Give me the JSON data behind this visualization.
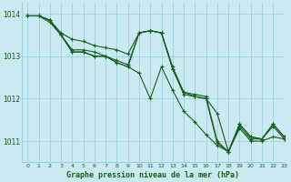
{
  "title": "Graphe pression niveau de la mer (hPa)",
  "background_color": "#c8eaf0",
  "plot_bg_color": "#c8eaf0",
  "grid_color": "#a0d0d8",
  "line_color": "#1a5e20",
  "xlim": [
    -0.5,
    23
  ],
  "ylim": [
    1010.5,
    1014.25
  ],
  "yticks": [
    1011,
    1012,
    1013,
    1014
  ],
  "xticks": [
    0,
    1,
    2,
    3,
    4,
    5,
    6,
    7,
    8,
    9,
    10,
    11,
    12,
    13,
    14,
    15,
    16,
    17,
    18,
    19,
    20,
    21,
    22,
    23
  ],
  "series": [
    [
      1013.95,
      1013.95,
      1013.85,
      1013.55,
      1013.4,
      1013.35,
      1013.25,
      1013.2,
      1013.15,
      1013.05,
      1013.55,
      1013.6,
      1013.55,
      1012.7,
      1012.15,
      1012.05,
      1012.0,
      1011.65,
      1010.75,
      1011.4,
      1011.1,
      1011.05,
      1011.4,
      1011.1
    ],
    [
      1013.95,
      1013.95,
      1013.85,
      1013.5,
      1013.15,
      1013.15,
      1013.1,
      1013.0,
      1012.9,
      1012.8,
      1013.55,
      1013.6,
      1013.55,
      1012.75,
      1012.15,
      1012.1,
      1012.05,
      1011.0,
      1010.75,
      1011.4,
      1011.1,
      1011.05,
      1011.4,
      1011.1
    ],
    [
      1013.95,
      1013.95,
      1013.85,
      1013.5,
      1013.1,
      1013.1,
      1013.0,
      1013.0,
      1012.85,
      1012.75,
      1013.55,
      1013.6,
      1013.55,
      1012.7,
      1012.1,
      1012.05,
      1012.0,
      1010.95,
      1010.75,
      1011.35,
      1011.05,
      1011.05,
      1011.35,
      1011.05
    ],
    [
      1013.95,
      1013.95,
      1013.8,
      1013.5,
      1013.1,
      1013.1,
      1013.0,
      1013.0,
      1012.85,
      1012.75,
      1012.6,
      1012.0,
      1012.75,
      1012.2,
      1011.7,
      1011.45,
      1011.15,
      1010.9,
      1010.75,
      1011.3,
      1011.0,
      1011.0,
      1011.1,
      1011.05
    ]
  ]
}
